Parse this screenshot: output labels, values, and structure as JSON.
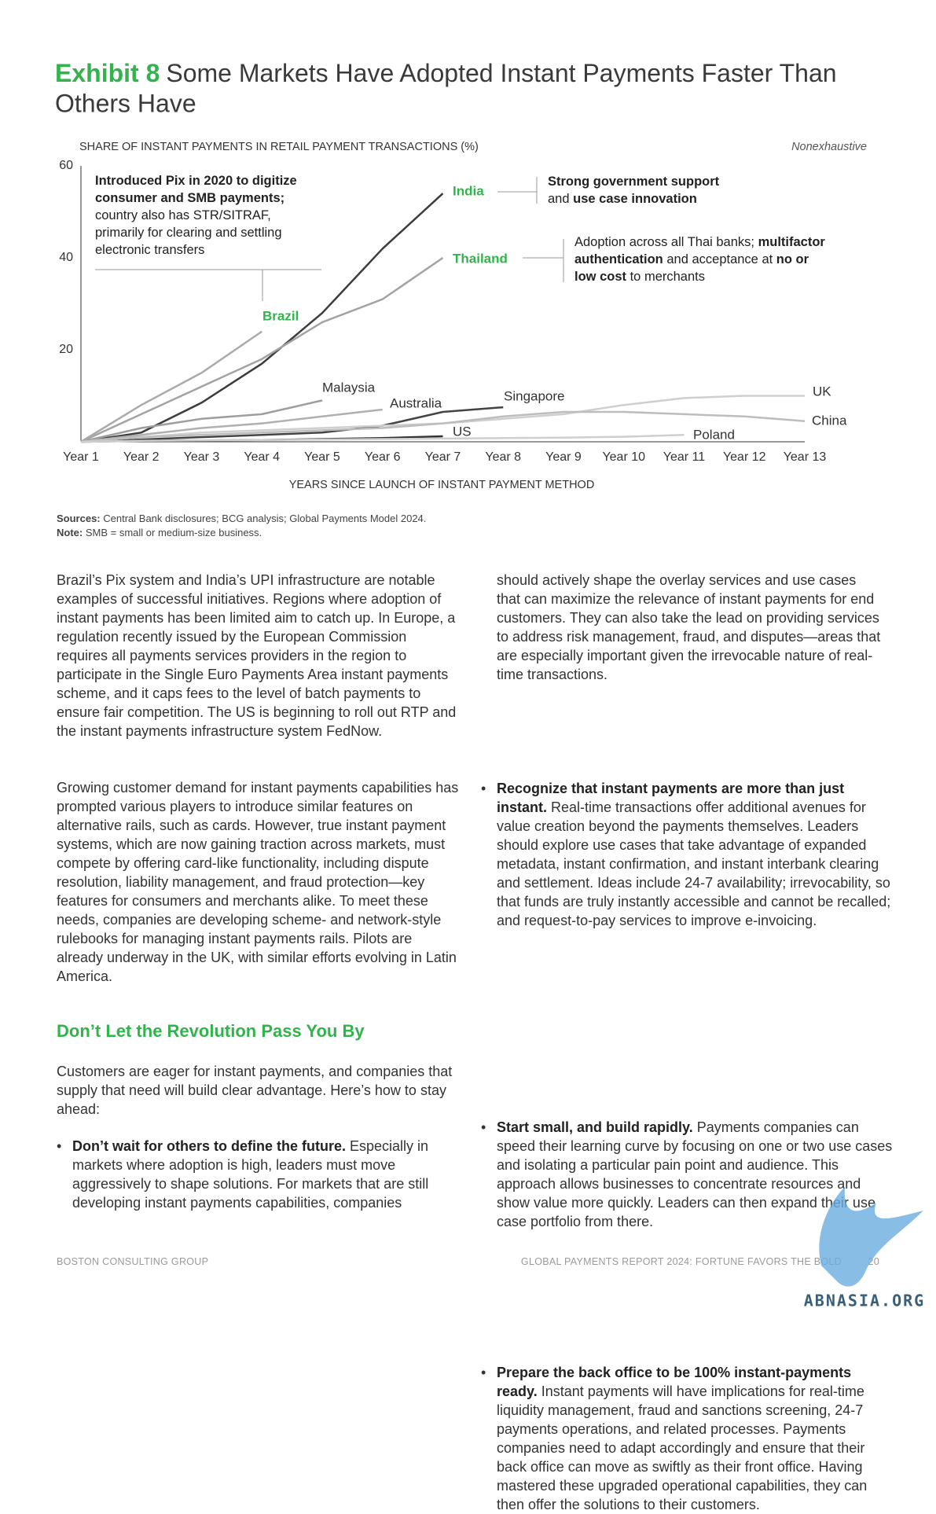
{
  "header": {
    "exhibit": "Exhibit 8",
    "title": "Some Markets Have Adopted Instant Payments Faster Than",
    "title_line2": "Others Have"
  },
  "chart_data": {
    "type": "line",
    "y_label": "SHARE OF INSTANT PAYMENTS IN RETAIL PAYMENT TRANSACTIONS (%)",
    "note": "Nonexhaustive",
    "x_label": "YEARS SINCE LAUNCH OF INSTANT PAYMENT METHOD",
    "categories": [
      "Year 1",
      "Year 2",
      "Year 3",
      "Year 4",
      "Year 5",
      "Year 6",
      "Year 7",
      "Year 8",
      "Year 9",
      "Year 10",
      "Year 11",
      "Year 12",
      "Year 13"
    ],
    "ylim": [
      0,
      60
    ],
    "yticks": [
      20,
      40,
      60
    ],
    "series": [
      {
        "name": "India",
        "color": "#3c3c3c",
        "values": [
          0,
          2,
          8.5,
          17,
          28,
          42,
          54,
          null,
          null,
          null,
          null,
          null,
          null
        ]
      },
      {
        "name": "Thailand",
        "color": "#a3a3a3",
        "values": [
          0,
          6,
          12,
          18,
          26,
          31,
          40,
          null,
          null,
          null,
          null,
          null,
          null
        ]
      },
      {
        "name": "Brazil",
        "color": "#ababab",
        "values": [
          0,
          8,
          15,
          24,
          null,
          null,
          null,
          null,
          null,
          null,
          null,
          null,
          null
        ]
      },
      {
        "name": "Malaysia",
        "color": "#9e9e9e",
        "values": [
          0,
          3,
          5,
          6,
          9,
          null,
          null,
          null,
          null,
          null,
          null,
          null,
          null
        ]
      },
      {
        "name": "Australia",
        "color": "#b0b0b0",
        "values": [
          0,
          1.5,
          3,
          4,
          5.5,
          7,
          null,
          null,
          null,
          null,
          null,
          null,
          null
        ]
      },
      {
        "name": "Singapore",
        "color": "#444444",
        "values": [
          0,
          0.5,
          1,
          1.5,
          2,
          3.5,
          6.5,
          7.5,
          null,
          null,
          null,
          null,
          null
        ]
      },
      {
        "name": "US",
        "color": "#333333",
        "values": [
          0,
          0.2,
          0.3,
          0.4,
          0.6,
          0.8,
          1.2,
          null,
          null,
          null,
          null,
          null,
          null
        ]
      },
      {
        "name": "UK",
        "color": "#cfcfcf",
        "values": [
          0,
          1,
          2,
          2.5,
          3,
          3.5,
          4,
          5,
          6,
          8,
          9.5,
          10,
          10
        ]
      },
      {
        "name": "China",
        "color": "#bdbdbd",
        "values": [
          0,
          1,
          1.5,
          2,
          2.5,
          3,
          4,
          5.5,
          6.5,
          6.5,
          6,
          5.5,
          4.5
        ]
      },
      {
        "name": "Poland",
        "color": "#cfcfcf",
        "values": [
          0,
          0.2,
          0.3,
          0.4,
          0.5,
          0.6,
          0.7,
          0.8,
          0.9,
          1.1,
          1.5,
          null,
          null
        ]
      }
    ],
    "annotations": [
      [
        [
          {
            "text": "Introduced Pix in 2020 to digitize",
            "bold": true
          }
        ],
        [
          {
            "text": "consumer and SMB payments;",
            "bold": true
          }
        ],
        [
          {
            "text": "country also has STR/SITRAF,",
            "bold": false
          }
        ],
        [
          {
            "text": "primarily for clearing and settling",
            "bold": false
          }
        ],
        [
          {
            "text": "electronic transfers",
            "bold": false
          }
        ]
      ],
      [
        [
          {
            "text": "Strong government support",
            "bold": true
          }
        ],
        [
          {
            "text": "and ",
            "bold": false
          },
          {
            "text": "use case innovation",
            "bold": true
          }
        ]
      ],
      [
        [
          {
            "text": "Adoption across all Thai banks; ",
            "bold": false
          },
          {
            "text": "multifactor",
            "bold": true
          }
        ],
        [
          {
            "text": "authentication",
            "bold": true
          },
          {
            "text": " and acceptance at ",
            "bold": false
          },
          {
            "text": "no or",
            "bold": true
          }
        ],
        [
          {
            "text": "low cost",
            "bold": true
          },
          {
            "text": " to merchants",
            "bold": false
          }
        ]
      ]
    ]
  },
  "sources": {
    "label": "Sources:",
    "text": "Central Bank disclosures; BCG analysis; Global Payments Model 2024."
  },
  "note": {
    "label": "Note:",
    "text": "SMB = small or medium-size business."
  },
  "body": {
    "col1": [
      "Brazil’s Pix system and India’s UPI infrastructure are notable examples of successful initiatives. Regions where adoption of instant payments has been limited aim to catch up. In Europe, a regulation recently issued by the European Commission requires all payments services providers in the region to participate in the Single Euro Payments Area instant payments scheme, and it caps fees to the level of batch payments to ensure fair competition. The US is beginning to roll out RTP and the instant payments infrastructure system FedNow.",
      "Growing customer demand for instant payments capabilities has prompted various players to introduce similar features on alternative rails, such as cards. However, true instant payment systems, which are now gaining traction across markets, must compete by offering card-like functionality, including dispute resolution, liability management, and fraud protection—key features for consumers and merchants alike. To meet these needs, companies are developing scheme- and network-style rulebooks for managing instant payments rails. Pilots are already underway in the UK, with similar efforts evolving in Latin America."
    ],
    "heading": "Don’t Let the Revolution Pass You By",
    "intro": "Customers are eager for instant payments, and companies that supply that need will build clear advantage. Here’s how to stay ahead:",
    "bullets": [
      {
        "lead": "Don’t wait for others to define the future.",
        "text": " Especially in markets where adoption is high, leaders must move aggressively to shape solutions. For markets that are still developing instant payments capabilities, companies"
      },
      {
        "lead": "Recognize that instant payments are more than just instant.",
        "text": " Real-time transactions offer additional avenues for value creation beyond the payments themselves. Leaders should explore use cases that take advantage of expanded metadata, instant confirmation, and instant interbank clearing and settlement. Ideas include 24-7 availability; irrevocability, so that funds are truly instantly accessible and cannot be recalled; and request-to-pay services to improve e-invoicing."
      },
      {
        "lead": "Start small, and build rapidly.",
        "text": " Payments companies can speed their learning curve by focusing on one or two use cases and isolating a particular pain point and audience. This approach allows businesses to concentrate resources and show value more quickly. Leaders can then expand their use case portfolio from there."
      },
      {
        "lead": "Prepare the back office to be 100% instant-payments ready.",
        "text": " Instant payments will have implications for real-time liquidity management, fraud and sanctions screening, 24-7 payments operations, and related processes. Payments companies need to adapt accordingly and ensure that their back office can move as swiftly as their front office. Having mastered these upgraded operational capabilities, they can then offer the solutions to their customers."
      }
    ],
    "col2_continuation": "should actively shape the overlay services and use cases that can maximize the relevance of instant payments for end customers. They can also take the lead on providing services to address risk management, fraud, and disputes—areas that are especially important given the irrevocable nature of real-time transactions."
  },
  "footer": {
    "left": "BOSTON CONSULTING GROUP",
    "right": "GLOBAL PAYMENTS REPORT 2024: FORTUNE FAVORS THE BOLD",
    "page": "20"
  },
  "watermark": "ABNASIA.ORG"
}
